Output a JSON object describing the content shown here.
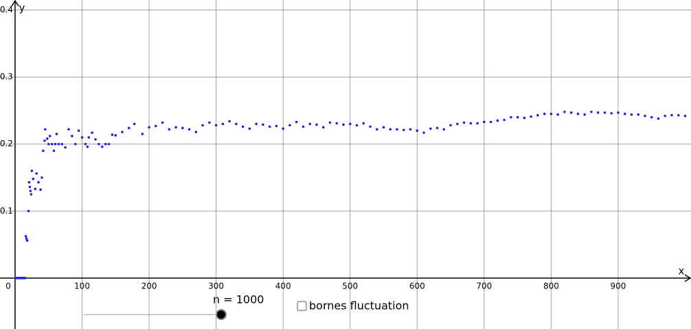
{
  "chart_data": {
    "type": "scatter",
    "x_label": "x",
    "y_label": "y",
    "xlim": [
      -22.5,
      1008.7
    ],
    "ylim": [
      -0.076,
      0.415
    ],
    "xticks": [
      0,
      100,
      200,
      300,
      400,
      500,
      600,
      700,
      800,
      900
    ],
    "yticks": [
      0.1,
      0.2,
      0.3,
      0.4
    ],
    "grid": true,
    "series": [
      {
        "color": "#2020e0",
        "x": [
          1,
          3,
          5,
          7,
          9,
          11,
          13,
          15,
          16,
          17,
          18,
          20,
          21,
          22,
          23,
          24,
          25,
          27,
          30,
          32,
          35,
          38,
          40,
          42,
          44,
          45,
          48,
          50,
          52,
          55,
          58,
          60,
          62,
          65,
          70,
          75,
          80,
          85,
          90,
          95,
          100,
          105,
          108,
          110,
          115,
          120,
          125,
          130,
          135,
          140,
          145,
          150,
          160,
          170,
          178,
          190,
          200,
          210,
          220,
          230,
          240,
          250,
          260,
          270,
          280,
          290,
          300,
          310,
          320,
          330,
          340,
          350,
          360,
          370,
          380,
          390,
          400,
          410,
          420,
          430,
          440,
          450,
          460,
          470,
          480,
          490,
          500,
          510,
          520,
          530,
          540,
          550,
          560,
          570,
          580,
          590,
          600,
          610,
          620,
          630,
          640,
          650,
          660,
          670,
          680,
          690,
          700,
          710,
          720,
          730,
          740,
          750,
          760,
          770,
          780,
          790,
          800,
          810,
          820,
          830,
          840,
          850,
          860,
          870,
          880,
          890,
          900,
          910,
          920,
          930,
          940,
          950,
          960,
          970,
          980,
          990,
          1000
        ],
        "values": [
          0,
          0,
          0,
          0,
          0,
          0,
          0,
          0,
          0.0625,
          0.059,
          0.056,
          0.1,
          0.143,
          0.136,
          0.13,
          0.125,
          0.16,
          0.148,
          0.133,
          0.156,
          0.143,
          0.132,
          0.15,
          0.19,
          0.205,
          0.222,
          0.208,
          0.2,
          0.212,
          0.2,
          0.19,
          0.2,
          0.215,
          0.2,
          0.2,
          0.195,
          0.222,
          0.212,
          0.2,
          0.22,
          0.21,
          0.2,
          0.196,
          0.21,
          0.217,
          0.207,
          0.2,
          0.196,
          0.2,
          0.2,
          0.214,
          0.213,
          0.218,
          0.224,
          0.23,
          0.215,
          0.225,
          0.227,
          0.232,
          0.222,
          0.225,
          0.224,
          0.222,
          0.218,
          0.228,
          0.232,
          0.228,
          0.23,
          0.234,
          0.23,
          0.226,
          0.223,
          0.23,
          0.229,
          0.226,
          0.227,
          0.223,
          0.228,
          0.233,
          0.226,
          0.23,
          0.229,
          0.225,
          0.232,
          0.231,
          0.229,
          0.23,
          0.228,
          0.231,
          0.226,
          0.222,
          0.225,
          0.222,
          0.222,
          0.221,
          0.222,
          0.22,
          0.217,
          0.223,
          0.224,
          0.222,
          0.228,
          0.23,
          0.232,
          0.231,
          0.231,
          0.233,
          0.233,
          0.235,
          0.236,
          0.24,
          0.24,
          0.239,
          0.241,
          0.243,
          0.245,
          0.245,
          0.244,
          0.248,
          0.247,
          0.245,
          0.244,
          0.248,
          0.247,
          0.247,
          0.246,
          0.247,
          0.245,
          0.244,
          0.244,
          0.242,
          0.24,
          0.238,
          0.242,
          0.243,
          0.243,
          0.242
        ]
      }
    ]
  },
  "slider": {
    "label": "n = 1000"
  },
  "checkbox": {
    "label": "bornes fluctuation"
  }
}
